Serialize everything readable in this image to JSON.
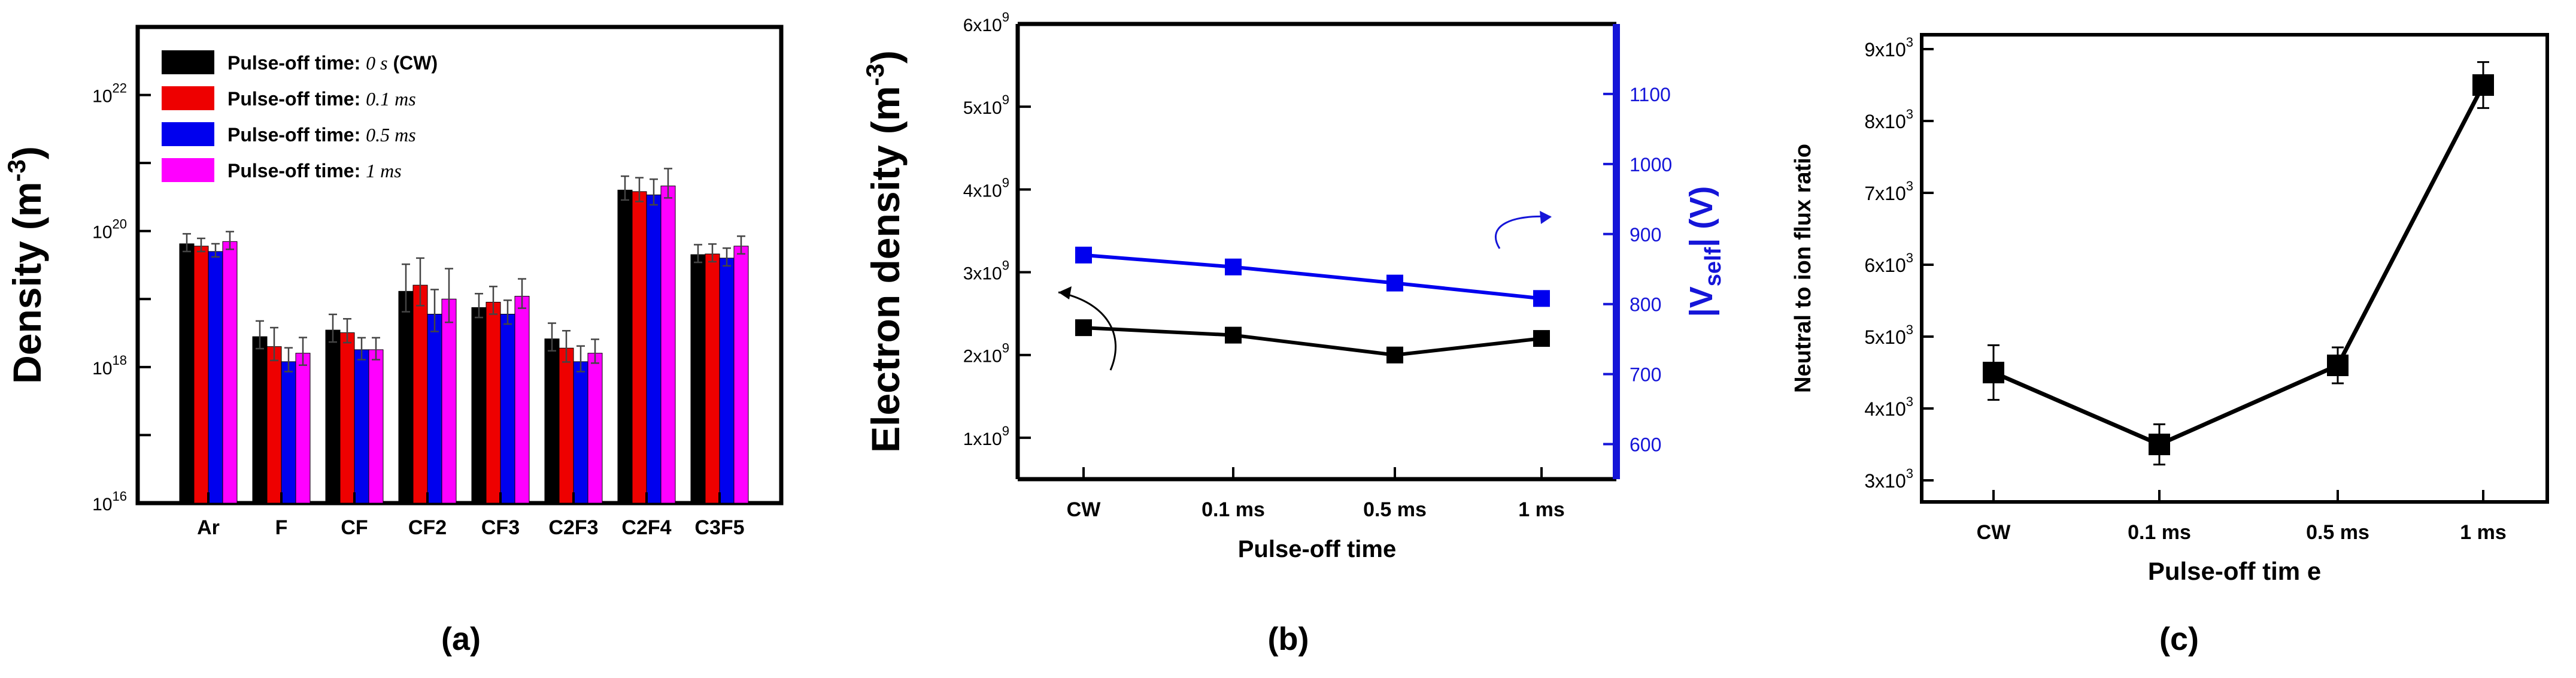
{
  "panel_labels": [
    "(a)",
    "(b)",
    "(c)"
  ],
  "colors": {
    "black": "#000000",
    "red": "#ee0000",
    "blue": "#0000ee",
    "magenta": "#ff00ff",
    "blue_axis": "#1515d8"
  },
  "chart_data": [
    {
      "type": "bar",
      "panel": "(a)",
      "ylabel": "Density (m",
      "ylabel_sup": "-3",
      "ylabel_close": ")",
      "yscale": "log",
      "ylim": [
        1e+16,
        1e+23
      ],
      "ytick_labels": [
        {
          "base": "10",
          "exp": "16"
        },
        {
          "base": "10",
          "exp": "18"
        },
        {
          "base": "10",
          "exp": "20"
        },
        {
          "base": "10",
          "exp": "22"
        }
      ],
      "categories": [
        "Ar",
        "F",
        "CF",
        "CF2",
        "CF3",
        "C2F3",
        "C2F4",
        "C3F5"
      ],
      "legend_position": "top-left",
      "series": [
        {
          "name": "Pulse-off time: 0 s (CW)",
          "legend_text": "Pulse-off time:",
          "legend_val": "0",
          "legend_unit": "s",
          "legend_suffix": "(CW)",
          "color": "#000000",
          "values": [
            6.5e+19,
            2.8e+18,
            3.5e+18,
            1.3e+19,
            7.5e+18,
            2.6e+18,
            4e+20,
            4.5e+19
          ],
          "errors_upper": [
            1.4,
            1.7,
            1.7,
            2.5,
            1.6,
            1.7,
            1.6,
            1.4
          ],
          "errors_lower": [
            1.3,
            1.5,
            1.5,
            2.0,
            1.4,
            1.5,
            1.4,
            1.3
          ]
        },
        {
          "name": "Pulse-off time: 0.1 ms",
          "legend_text": "Pulse-off time:",
          "legend_val": "0.1",
          "legend_unit": "ms",
          "legend_suffix": "",
          "color": "#ee0000",
          "values": [
            6e+19,
            2e+18,
            3.2e+18,
            1.6e+19,
            9e+18,
            1.9e+18,
            3.8e+20,
            4.6e+19
          ],
          "errors_upper": [
            1.3,
            1.9,
            1.6,
            2.5,
            1.7,
            1.8,
            1.6,
            1.4
          ],
          "errors_lower": [
            1.2,
            1.6,
            1.4,
            2.0,
            1.5,
            1.6,
            1.4,
            1.3
          ]
        },
        {
          "name": "Pulse-off time: 0.5 ms",
          "legend_text": "Pulse-off time:",
          "legend_val": "0.5",
          "legend_unit": "ms",
          "legend_suffix": "",
          "color": "#0000ee",
          "values": [
            5e+19,
            1.2e+18,
            1.8e+18,
            6e+18,
            6e+18,
            1.2e+18,
            3.4e+20,
            4e+19
          ],
          "errors_upper": [
            1.3,
            1.6,
            1.5,
            2.3,
            1.6,
            1.7,
            1.7,
            1.4
          ],
          "errors_lower": [
            1.2,
            1.4,
            1.4,
            1.8,
            1.4,
            1.4,
            1.4,
            1.3
          ]
        },
        {
          "name": "Pulse-off time: 1 ms",
          "legend_text": "Pulse-off time:",
          "legend_val": "1",
          "legend_unit": "ms",
          "legend_suffix": "",
          "color": "#ff00ff",
          "values": [
            7e+19,
            1.6e+18,
            1.8e+18,
            1e+19,
            1.1e+19,
            1.6e+18,
            4.6e+20,
            6e+19
          ],
          "errors_upper": [
            1.4,
            1.7,
            1.5,
            2.8,
            1.8,
            1.6,
            1.8,
            1.4
          ],
          "errors_lower": [
            1.3,
            1.5,
            1.4,
            2.2,
            1.5,
            1.4,
            1.5,
            1.3
          ]
        }
      ]
    },
    {
      "type": "line",
      "panel": "(b)",
      "xlabel": "Pulse-off time",
      "categories": [
        "CW",
        "0.1 ms",
        "0.5 ms",
        "1 ms"
      ],
      "ylabel_left": "Electron density (m",
      "ylabel_left_sup": "-3",
      "ylabel_left_close": ")",
      "ylim_left": [
        500000000.0,
        6000000000.0
      ],
      "yticks_left": [
        {
          "value": 1000000000.0,
          "mant": "1x10",
          "exp": "9"
        },
        {
          "value": 2000000000.0,
          "mant": "2x10",
          "exp": "9"
        },
        {
          "value": 3000000000.0,
          "mant": "3x10",
          "exp": "9"
        },
        {
          "value": 4000000000.0,
          "mant": "4x10",
          "exp": "9"
        },
        {
          "value": 5000000000.0,
          "mant": "5x10",
          "exp": "9"
        },
        {
          "value": 6000000000.0,
          "mant": "6x10",
          "exp": "9"
        }
      ],
      "ylabel_right_pre": "|V",
      "ylabel_right_sub": "self",
      "ylabel_right_post": "| (V)",
      "ylim_right": [
        550,
        1200
      ],
      "yticks_right": [
        600,
        700,
        800,
        900,
        1000,
        1100
      ],
      "series": [
        {
          "axis": "left",
          "color": "#000000",
          "values": [
            2330000000.0,
            2240000000.0,
            2000000000.0,
            2200000000.0
          ]
        },
        {
          "axis": "right",
          "color": "#0000ee",
          "values": [
            870,
            853,
            830,
            808
          ]
        }
      ]
    },
    {
      "type": "line",
      "panel": "(c)",
      "xlabel": "Pulse-off tim e",
      "ylabel": "Neutral to ion flux ratio",
      "categories": [
        "CW",
        "0.1 ms",
        "0.5 ms",
        "1 ms"
      ],
      "ylim": [
        2700,
        9200
      ],
      "yticks": [
        {
          "value": 3000,
          "mant": "3x10",
          "exp": "3"
        },
        {
          "value": 4000,
          "mant": "4x10",
          "exp": "3"
        },
        {
          "value": 5000,
          "mant": "5x10",
          "exp": "3"
        },
        {
          "value": 6000,
          "mant": "6x10",
          "exp": "3"
        },
        {
          "value": 7000,
          "mant": "7x10",
          "exp": "3"
        },
        {
          "value": 8000,
          "mant": "8x10",
          "exp": "3"
        },
        {
          "value": 9000,
          "mant": "9x10",
          "exp": "3"
        }
      ],
      "series": [
        {
          "color": "#000000",
          "values": [
            4500,
            3500,
            4600,
            8500
          ],
          "errors": [
            380,
            280,
            250,
            320
          ]
        }
      ]
    }
  ]
}
